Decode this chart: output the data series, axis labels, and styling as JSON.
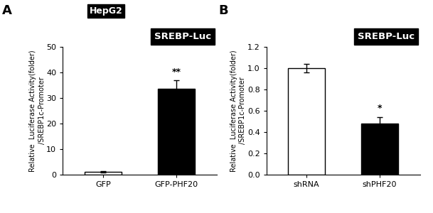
{
  "panel_A": {
    "categories": [
      "GFP",
      "GFP-PHF20"
    ],
    "values": [
      1.0,
      33.5
    ],
    "errors": [
      0.3,
      3.5
    ],
    "bar_colors": [
      "white",
      "black"
    ],
    "ylim": [
      0,
      50
    ],
    "yticks": [
      0,
      10,
      20,
      30,
      40,
      50
    ],
    "ylabel": "Relative  Luciferase Activity(folder)\n/SREBP1c-Promoter",
    "title": "SREBP-Luc",
    "panel_label": "A",
    "cell_line": "HepG2",
    "significance": [
      "",
      "**"
    ],
    "sig_fontsize": 9,
    "ylabel_fontsize": 7,
    "tick_fontsize": 8,
    "xtick_fontsize": 8
  },
  "panel_B": {
    "categories": [
      "shRNA",
      "shPHF20"
    ],
    "values": [
      1.0,
      0.48
    ],
    "errors": [
      0.04,
      0.06
    ],
    "bar_colors": [
      "white",
      "black"
    ],
    "ylim": [
      0,
      1.2
    ],
    "yticks": [
      0.0,
      0.2,
      0.4,
      0.6,
      0.8,
      1.0,
      1.2
    ],
    "ylabel": "Relative  Luciferase Activity(folder)\n/SREBP1c-Promoter",
    "title": "SREBP-Luc",
    "panel_label": "B",
    "significance": [
      "",
      "*"
    ],
    "sig_fontsize": 9,
    "ylabel_fontsize": 7,
    "tick_fontsize": 8,
    "xtick_fontsize": 8
  },
  "fig_width": 6.09,
  "fig_height": 3.0,
  "dpi": 100
}
